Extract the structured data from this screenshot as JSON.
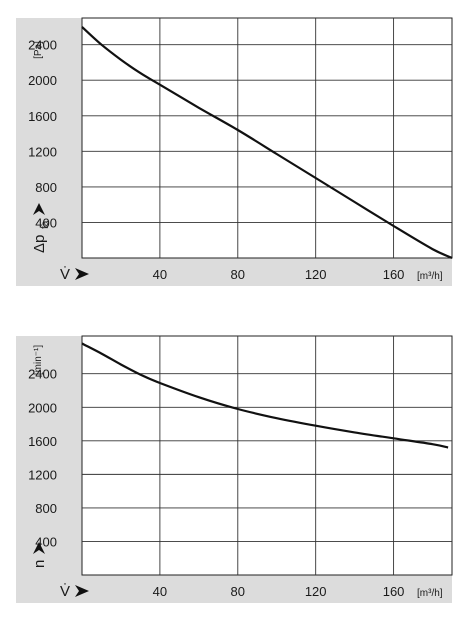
{
  "chart_data": [
    {
      "type": "line",
      "x_symbol": "V̇",
      "x_unit": "[m³/h]",
      "y_symbol": "Δp",
      "y_subscript": "fa",
      "y_unit": "[Pa]",
      "xlim": [
        0,
        190
      ],
      "ylim": [
        0,
        2700
      ],
      "xticks": [
        40,
        80,
        120,
        160
      ],
      "yticks": [
        400,
        800,
        1200,
        1600,
        2000,
        2400
      ],
      "grid": true,
      "series": [
        {
          "x": [
            0,
            10,
            20,
            30,
            40,
            60,
            80,
            100,
            120,
            140,
            160,
            180,
            190
          ],
          "y": [
            2600,
            2400,
            2230,
            2080,
            1950,
            1690,
            1440,
            1170,
            900,
            630,
            360,
            100,
            0
          ]
        }
      ]
    },
    {
      "type": "line",
      "x_symbol": "V̇",
      "x_unit": "[m³/h]",
      "y_symbol": "n",
      "y_unit": "[min⁻¹]",
      "xlim": [
        0,
        190
      ],
      "ylim": [
        0,
        2850
      ],
      "xticks": [
        40,
        80,
        120,
        160
      ],
      "yticks": [
        400,
        800,
        1200,
        1600,
        2000,
        2400
      ],
      "grid": true,
      "series": [
        {
          "x": [
            0,
            10,
            20,
            30,
            40,
            60,
            80,
            100,
            120,
            140,
            160,
            180,
            188
          ],
          "y": [
            2760,
            2640,
            2510,
            2390,
            2290,
            2120,
            1980,
            1870,
            1780,
            1700,
            1630,
            1560,
            1520
          ]
        }
      ]
    }
  ]
}
